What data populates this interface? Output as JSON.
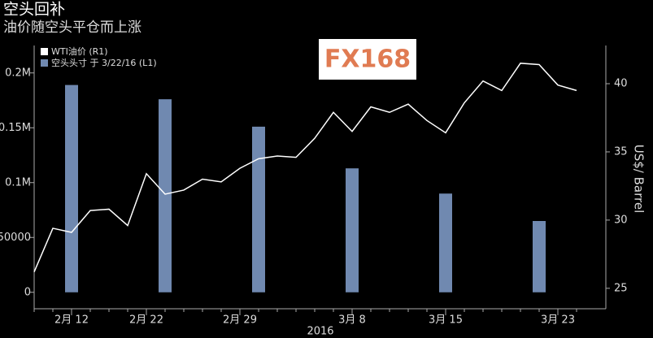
{
  "chart_data": {
    "type": "bar-line",
    "title": "空头回补",
    "subtitle": "油价随空头平仓而上涨",
    "watermark": "FX168",
    "x_label": "2016",
    "y2_label": "US$/ Barrel",
    "categories": [
      null,
      null,
      "2月 12",
      null,
      null,
      null,
      "2月 22",
      null,
      null,
      null,
      null,
      "2月 29",
      null,
      null,
      null,
      null,
      null,
      "3月 8",
      null,
      null,
      null,
      null,
      "3月 15",
      null,
      null,
      null,
      null,
      null,
      "3月 23",
      null
    ],
    "series": [
      {
        "name": "WTI油价 (R1)",
        "type": "line",
        "axis": "y2",
        "color": "#ffffff",
        "values": [
          26.2,
          29.4,
          29.1,
          30.7,
          30.8,
          29.6,
          33.4,
          31.9,
          32.2,
          33.0,
          32.8,
          33.8,
          34.5,
          34.7,
          34.6,
          36.0,
          37.9,
          36.5,
          38.3,
          37.9,
          38.5,
          37.3,
          36.4,
          38.6,
          40.2,
          39.5,
          41.5,
          41.4,
          39.9,
          39.5
        ]
      },
      {
        "name": "空头头寸 于 3/22/16 (L1)",
        "type": "bar",
        "axis": "y",
        "color": "#7089b0",
        "values": [
          null,
          null,
          189000,
          null,
          null,
          null,
          null,
          176000,
          null,
          null,
          null,
          null,
          151000,
          null,
          null,
          null,
          null,
          113000,
          null,
          null,
          null,
          null,
          90000,
          null,
          null,
          null,
          null,
          65000,
          null,
          null
        ]
      }
    ],
    "ylim": [
      -15000,
      225000
    ],
    "yticks": [
      0,
      50000,
      {
        "value": 100000,
        "label": "0.1M"
      },
      {
        "value": 150000,
        "label": "0.15M"
      },
      {
        "value": 200000,
        "label": "0.2M"
      }
    ],
    "y2lim": [
      23.5,
      42.8
    ],
    "y2ticks": [
      25,
      30,
      35,
      40
    ]
  }
}
